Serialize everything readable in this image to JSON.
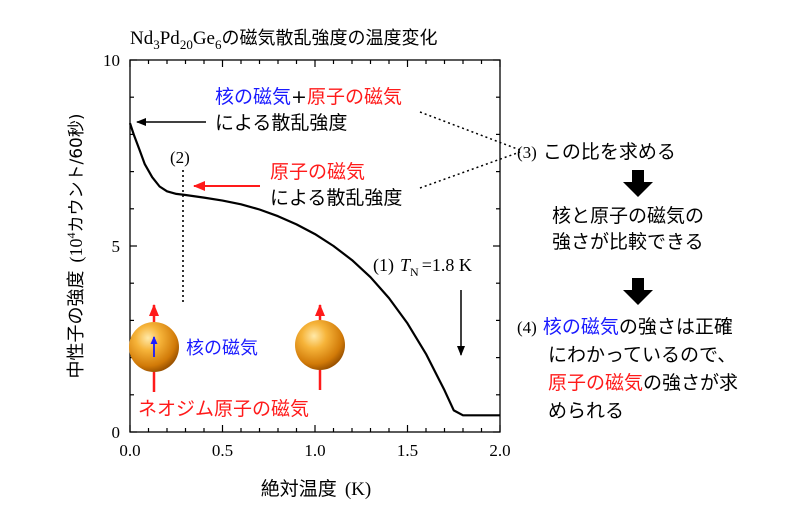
{
  "chart_data": {
    "type": "line",
    "title_parts": [
      "Nd",
      "3",
      "Pd",
      "20",
      "Ge",
      "6",
      "の磁気散乱強度の温度変化"
    ],
    "xlabel": "絶対温度",
    "xlabel_unit": "(K)",
    "ylabel": "中性子の強度",
    "ylabel_unit_parts": [
      "(10",
      "4",
      "カウント/60秒)"
    ],
    "xlim": [
      0,
      2.0
    ],
    "ylim": [
      0,
      10
    ],
    "x_ticks": [
      "0.0",
      "0.5",
      "1.0",
      "1.5",
      "2.0"
    ],
    "y_ticks": [
      "0",
      "5",
      "10"
    ],
    "series": [
      {
        "x": [
          0.0,
          0.02,
          0.05,
          0.08,
          0.12,
          0.16,
          0.2,
          0.25,
          0.3,
          0.4,
          0.5,
          0.6,
          0.7,
          0.8,
          0.9,
          1.0,
          1.1,
          1.2,
          1.3,
          1.4,
          1.5,
          1.6,
          1.7,
          1.75,
          1.8,
          1.85,
          1.9,
          2.0
        ],
        "y": [
          8.3,
          8.0,
          7.6,
          7.2,
          6.85,
          6.6,
          6.47,
          6.4,
          6.37,
          6.3,
          6.22,
          6.12,
          5.98,
          5.8,
          5.58,
          5.32,
          5.0,
          4.62,
          4.16,
          3.6,
          2.92,
          2.1,
          1.12,
          0.58,
          0.45,
          0.45,
          0.45,
          0.45
        ]
      }
    ]
  },
  "annotations": {
    "combined_label": {
      "part1": "核の磁気",
      "plus": "+",
      "part2": "原子の磁気",
      "line2": "による散乱強度"
    },
    "atomic_label": {
      "line1": "原子の磁気",
      "line2": "による散乱強度"
    },
    "marker2": "(2)",
    "marker1": "(1)",
    "tn": {
      "T": "T",
      "sub": "N",
      "value": "=1.8 K"
    },
    "nuclear_label": "核の磁気",
    "neodymium_label": "ネオジム原子の磁気",
    "step3": {
      "num": "(3)",
      "text": "この比を求める"
    },
    "compare": {
      "line1": "核と原子の磁気の",
      "line2": "強さが比較できる"
    },
    "step4": {
      "num": "(4)",
      "line1_blue": "核の磁気",
      "line1_rest": "の強さは正確",
      "line2": "にわかっているので、",
      "line3_red": "原子の磁気",
      "line3_rest": "の強さが求",
      "line4": "められる"
    }
  },
  "colors": {
    "blue": "#1a1aff",
    "red": "#ff1a1a",
    "sphere": "#f0a020",
    "axes": "#000000"
  }
}
